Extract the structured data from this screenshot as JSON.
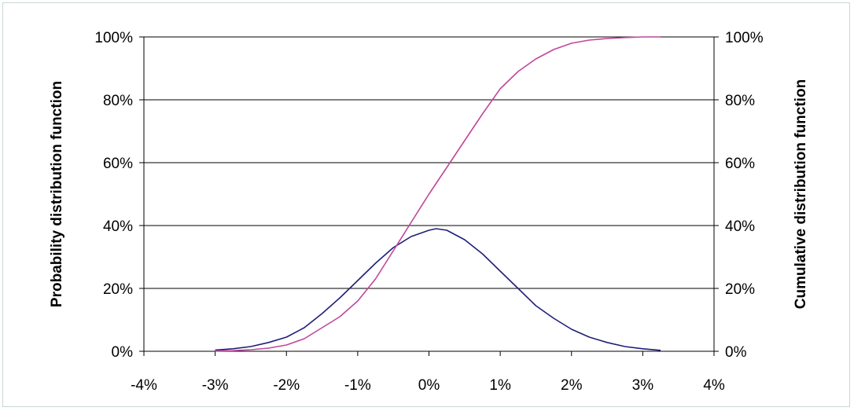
{
  "chart_data": {
    "type": "line",
    "title": "",
    "xlabel": "",
    "ylabel_left": "Probability distribution function",
    "ylabel_right": "Cumulative distribution function",
    "x_ticks": [
      "-4%",
      "-3%",
      "-2%",
      "-1%",
      "0%",
      "1%",
      "2%",
      "3%",
      "4%"
    ],
    "y_ticks_left": [
      "0%",
      "20%",
      "40%",
      "60%",
      "80%",
      "100%"
    ],
    "y_ticks_right": [
      "0%",
      "20%",
      "40%",
      "60%",
      "80%",
      "100%"
    ],
    "xlim": [
      -4,
      4
    ],
    "ylim": [
      0,
      100
    ],
    "grid": "horizontal",
    "legend": "none",
    "colors": {
      "pdf": "#1f1f7a",
      "cdf": "#c0479b",
      "grid": "#000000",
      "frame": "#c8d8d2"
    },
    "series": [
      {
        "key": "pdf",
        "x": [
          -3.0,
          -2.75,
          -2.5,
          -2.25,
          -2.0,
          -1.75,
          -1.5,
          -1.25,
          -1.0,
          -0.75,
          -0.5,
          -0.25,
          0.0,
          0.1,
          0.25,
          0.5,
          0.75,
          1.0,
          1.25,
          1.5,
          1.75,
          2.0,
          2.25,
          2.5,
          2.75,
          3.0,
          3.25
        ],
        "y": [
          0.4,
          0.8,
          1.5,
          2.8,
          4.5,
          7.5,
          12,
          17,
          22.5,
          28,
          33,
          36.5,
          38.5,
          39,
          38.5,
          35.5,
          31,
          25.5,
          20,
          14.5,
          10.5,
          7,
          4.5,
          2.8,
          1.5,
          0.8,
          0.3
        ]
      },
      {
        "key": "cdf",
        "x": [
          -3.0,
          -2.75,
          -2.5,
          -2.25,
          -2.0,
          -1.75,
          -1.5,
          -1.25,
          -1.0,
          -0.75,
          -0.5,
          -0.25,
          0.0,
          0.25,
          0.5,
          0.75,
          1.0,
          1.25,
          1.5,
          1.75,
          2.0,
          2.25,
          2.5,
          2.75,
          3.0,
          3.25
        ],
        "y": [
          0.1,
          0.2,
          0.5,
          1.0,
          2.0,
          4.0,
          7.5,
          11,
          16,
          23,
          32,
          41,
          50,
          58.5,
          67,
          75.5,
          83.5,
          89,
          93,
          96,
          98,
          99,
          99.5,
          99.8,
          100,
          100
        ]
      }
    ]
  }
}
